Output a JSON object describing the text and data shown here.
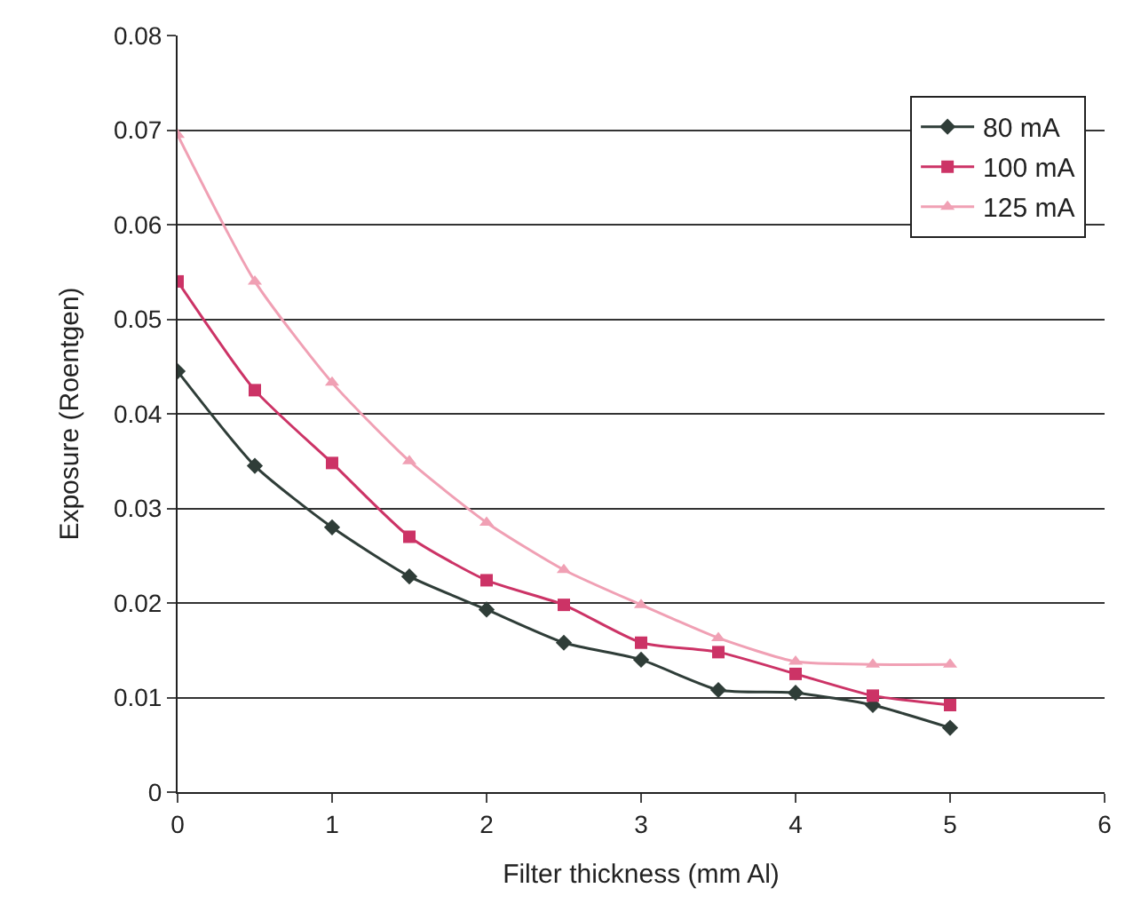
{
  "chart_data": {
    "type": "line",
    "xlabel": "Filter thickness (mm Al)",
    "ylabel": "Exposure (Roentgen)",
    "x": [
      0,
      0.5,
      1,
      1.5,
      2,
      2.5,
      3,
      3.5,
      4,
      4.5,
      5
    ],
    "series": [
      {
        "name": "80 mA",
        "color": "#2f3d38",
        "marker": "diamond",
        "values": [
          0.0445,
          0.0345,
          0.028,
          0.0228,
          0.0193,
          0.0158,
          0.014,
          0.0108,
          0.0105,
          0.0092,
          0.0068
        ]
      },
      {
        "name": "100 mA",
        "color": "#cc3366",
        "marker": "square",
        "values": [
          0.054,
          0.0425,
          0.0348,
          0.027,
          0.0224,
          0.0198,
          0.0158,
          0.0148,
          0.0125,
          0.0102,
          0.0092
        ]
      },
      {
        "name": "125 mA",
        "color": "#f0a0b4",
        "marker": "triangle",
        "values": [
          0.0695,
          0.054,
          0.0433,
          0.035,
          0.0285,
          0.0235,
          0.0198,
          0.0163,
          0.0138,
          0.0135,
          0.0135
        ]
      }
    ],
    "xlim": [
      0,
      6
    ],
    "xticks": [
      0,
      1,
      2,
      3,
      4,
      5,
      6
    ],
    "ylim": [
      0,
      0.08
    ],
    "yticks": [
      0,
      0.01,
      0.02,
      0.03,
      0.04,
      0.05,
      0.06,
      0.07,
      0.08
    ],
    "grid": "y",
    "legend": "top right",
    "line_style": "solid"
  }
}
